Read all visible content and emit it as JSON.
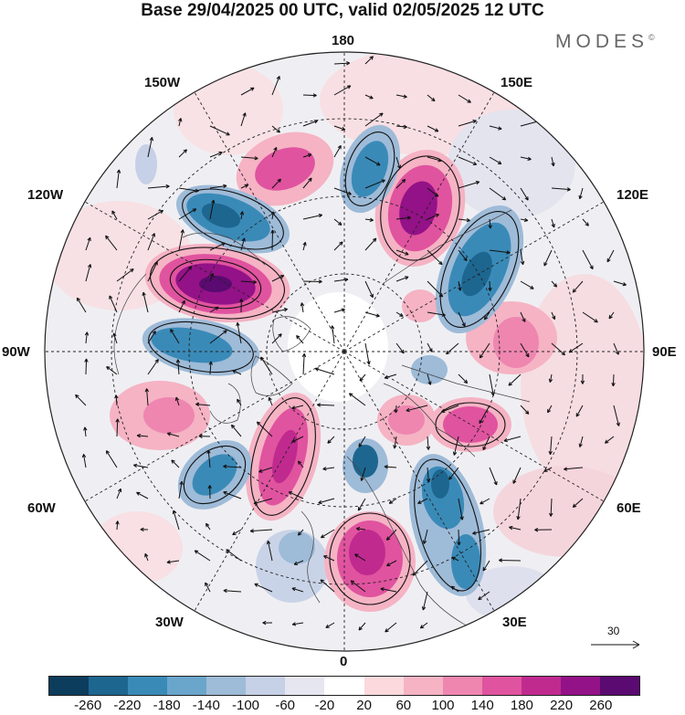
{
  "title": "Base 29/04/2025 00 UTC, valid 02/05/2025 12 UTC",
  "logo": {
    "text": "MODES",
    "mark": "©"
  },
  "map": {
    "projection": "north-polar-stereographic",
    "longitude_labels": {
      "top": "180",
      "upper_left": "150W",
      "upper_right": "150E",
      "left_high": "120W",
      "right_high": "120E",
      "left": "90W",
      "right": "90E",
      "left_low": "60W",
      "right_low": "60E",
      "lower_left": "30W",
      "lower_right": "30E",
      "bottom": "0"
    },
    "reference_vector": {
      "label": "30"
    }
  },
  "colorbar": {
    "colors": [
      "#0d3d5c",
      "#1d6690",
      "#3a8ab8",
      "#6aa6cc",
      "#9ebbd8",
      "#c6d0e6",
      "#e6e6f0",
      "#ffffff",
      "#fbd9dc",
      "#f5b3c4",
      "#ee86b0",
      "#e0539f",
      "#c02a8f",
      "#931287",
      "#5a0a70"
    ],
    "tick_labels": [
      "-260",
      "-220",
      "-180",
      "-140",
      "-100",
      "-60",
      "-20",
      "20",
      "60",
      "100",
      "140",
      "180",
      "220",
      "260"
    ]
  }
}
